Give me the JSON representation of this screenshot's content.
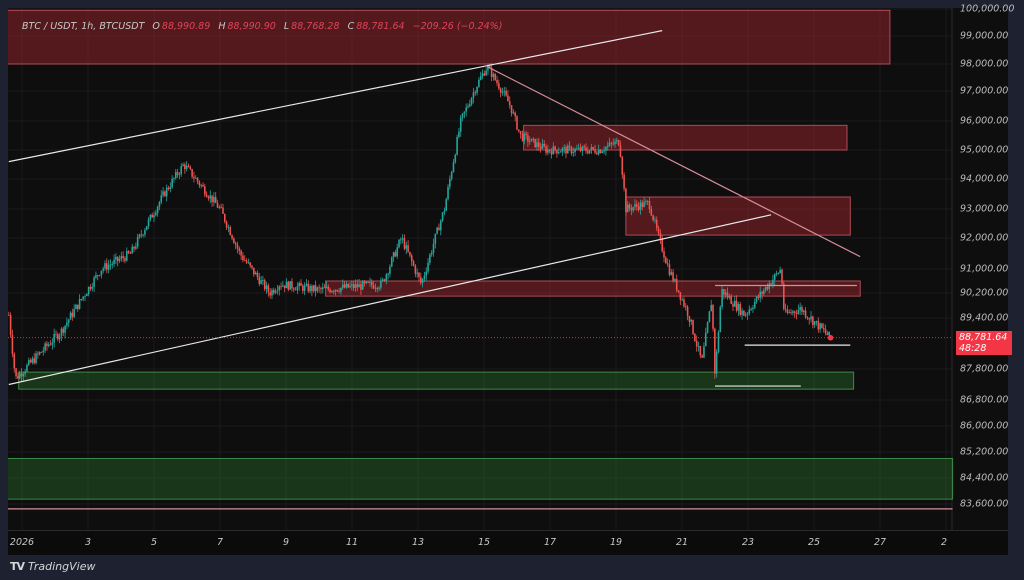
{
  "header": {
    "symbol": "BTC / USDT, 1h, BTCUSDT",
    "open_label": "O",
    "open": "88,990.89",
    "high_label": "H",
    "high": "88,990.90",
    "low_label": "L",
    "low": "88,768.28",
    "close_label": "C",
    "close": "88,781.64",
    "change": "−209.26 (−0.24%)"
  },
  "price_tag": {
    "price": "88,781.64",
    "countdown": "48:28"
  },
  "footer": {
    "brand": "TradingView",
    "logo": "TV"
  },
  "colors": {
    "up": "#26a69a",
    "down": "#ef5350",
    "background": "#0e0e0f",
    "price_tag": "#f23645"
  },
  "chart_data": {
    "type": "candlestick",
    "title": "",
    "y_ticks": [
      "100,000.00",
      "99,000.00",
      "98,000.00",
      "97,000.00",
      "96,000.00",
      "95,000.00",
      "94,000.00",
      "93,000.00",
      "92,000.00",
      "91,000.00",
      "90,200.00",
      "89,400.00",
      "87,800.00",
      "86,800.00",
      "86,000.00",
      "85,200.00",
      "84,400.00",
      "83,600.00"
    ],
    "x_ticks": [
      "2026",
      "3",
      "5",
      "7",
      "9",
      "11",
      "13",
      "15",
      "17",
      "19",
      "21",
      "23",
      "25",
      "27",
      "2"
    ],
    "last_price": 88781.64,
    "price_path": [
      [
        0.6,
        89500
      ],
      [
        0.8,
        87500
      ],
      [
        2.2,
        89000
      ],
      [
        3.4,
        91000
      ],
      [
        4.3,
        91500
      ],
      [
        5.3,
        93500
      ],
      [
        5.9,
        94500
      ],
      [
        7.0,
        93000
      ],
      [
        7.6,
        91500
      ],
      [
        8.5,
        90200
      ],
      [
        8.8,
        90500
      ],
      [
        10.0,
        90300
      ],
      [
        11.9,
        90500
      ],
      [
        12.5,
        92000
      ],
      [
        13.1,
        90500
      ],
      [
        13.8,
        93000
      ],
      [
        14.3,
        96000
      ],
      [
        14.9,
        97500
      ],
      [
        15.1,
        97900
      ],
      [
        15.8,
        96500
      ],
      [
        16.1,
        95500
      ],
      [
        16.9,
        95000
      ],
      [
        18.5,
        95000
      ],
      [
        19.1,
        95300
      ],
      [
        19.3,
        93000
      ],
      [
        20.0,
        93200
      ],
      [
        20.3,
        92000
      ],
      [
        20.6,
        91000
      ],
      [
        21.2,
        89500
      ],
      [
        21.6,
        88000
      ],
      [
        21.9,
        90000
      ],
      [
        22.0,
        87600
      ],
      [
        22.2,
        90300
      ],
      [
        22.9,
        89500
      ],
      [
        24.0,
        91000
      ],
      [
        24.1,
        89500
      ],
      [
        24.6,
        89700
      ],
      [
        25.5,
        88780
      ]
    ],
    "zones": [
      {
        "color": "red",
        "from_day": 0.5,
        "to_day": 27.3,
        "low": 98000,
        "high": 99950
      },
      {
        "color": "red",
        "from_day": 16.2,
        "to_day": 26.0,
        "low": 95000,
        "high": 95850
      },
      {
        "color": "red",
        "from_day": 19.3,
        "to_day": 26.1,
        "low": 92100,
        "high": 93400
      },
      {
        "color": "red",
        "from_day": 10.2,
        "to_day": 26.4,
        "low": 90100,
        "high": 90600
      },
      {
        "color": "green",
        "from_day": 0.9,
        "to_day": 26.2,
        "low": 87150,
        "high": 87700
      },
      {
        "color": "green",
        "from_day": 0.5,
        "to_day": 29.2,
        "low": 83750,
        "high": 85000
      }
    ],
    "lines": [
      {
        "color": "white",
        "from": [
          0.6,
          94600
        ],
        "to": [
          20.4,
          99200
        ]
      },
      {
        "color": "white",
        "from": [
          0.6,
          87300
        ],
        "to": [
          23.7,
          92800
        ]
      },
      {
        "color": "pink",
        "from": [
          15.1,
          97900
        ],
        "to": [
          26.4,
          91400
        ]
      },
      {
        "color": "white",
        "from": [
          22.9,
          88550
        ],
        "to": [
          26.1,
          88550
        ]
      },
      {
        "color": "white",
        "from": [
          22.0,
          87250
        ],
        "to": [
          24.6,
          87250
        ]
      },
      {
        "color": "pink",
        "from": [
          22.0,
          90450
        ],
        "to": [
          26.3,
          90450
        ]
      },
      {
        "color": "pink",
        "from": [
          0.5,
          83450
        ],
        "to": [
          29.2,
          83450
        ]
      }
    ]
  }
}
